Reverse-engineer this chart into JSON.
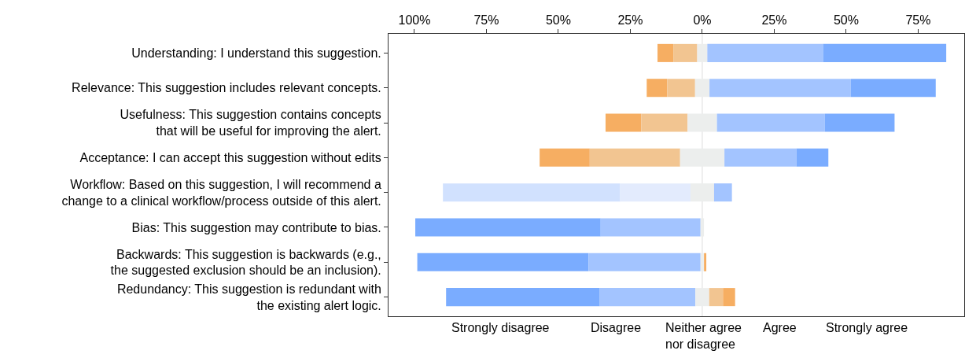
{
  "chart_data": {
    "type": "bar",
    "orientation": "horizontal",
    "categories": [
      "Understanding: I understand this suggestion.",
      "Relevance: This suggestion includes relevant concepts.",
      "Usefulness: This suggestion contains concepts\nthat will be useful for improving the alert.",
      "Acceptance: I can accept this suggestion without edits",
      "Workflow: Based on this suggestion, I will recommend a\nchange to a clinical workflow/process outside of this alert.",
      "Bias: This suggestion may contribute to bias.",
      "Backwards: This suggestion is backwards (e.g.,\nthe suggested exclusion should be an inclusion).",
      "Redundancy: This suggestion is redundant with\nthe existing alert logic."
    ],
    "series": [
      {
        "base": [
          -15.55,
          -19.3,
          -33.6,
          -56.5,
          -90.1,
          -99.7,
          -99.0,
          -89.0
        ],
        "values": [
          5.5,
          7.1,
          12.4,
          17.4,
          61.6,
          64.4,
          59.5,
          53.4
        ],
        "colors": [
          "#f6ae62",
          "#f6ae62",
          "#f6ae62",
          "#f6ae62",
          "#d1e1fe",
          "#7aacff",
          "#7aacff",
          "#7aacff"
        ]
      },
      {
        "base": [
          -10.05,
          -12.2,
          -21.2,
          -39.1,
          -28.5,
          -35.3,
          -39.5,
          -35.6
        ],
        "values": [
          8.3,
          9.7,
          16.1,
          31.4,
          24.4,
          34.7,
          38.9,
          33.2
        ],
        "colors": [
          "#f2c591",
          "#f2c591",
          "#f2c591",
          "#f2c591",
          "#e3ebfd",
          "#a3c4ff",
          "#a3c4ff",
          "#a3c4ff"
        ]
      },
      {
        "base": [
          -1.75,
          -2.5,
          -5.1,
          -7.7,
          -4.1,
          -0.6,
          -0.6,
          -2.4
        ],
        "values": [
          3.5,
          5.0,
          10.2,
          15.4,
          8.2,
          1.2,
          1.2,
          4.8
        ],
        "colors": [
          "#eceeed",
          "#eceeed",
          "#eceeed",
          "#eceeed",
          "#eceeed",
          "#eceeed",
          "#eceeed",
          "#eceeed"
        ]
      },
      {
        "base": [
          1.75,
          2.5,
          5.1,
          7.7,
          4.1,
          null,
          0.6,
          2.4
        ],
        "values": [
          40.2,
          49.1,
          37.5,
          25.0,
          6.2,
          null,
          0.8,
          4.8
        ],
        "colors": [
          "#a3c4ff",
          "#a3c4ff",
          "#a3c4ff",
          "#a3c4ff",
          "#a3c4ff",
          "#f2c591",
          "#f6ae62",
          "#f2c591"
        ]
      },
      {
        "base": [
          41.95,
          51.6,
          42.6,
          32.7,
          null,
          null,
          null,
          7.2
        ],
        "values": [
          42.8,
          29.5,
          24.2,
          11.1,
          null,
          null,
          null,
          4.2
        ],
        "colors": [
          "#7aacff",
          "#7aacff",
          "#7aacff",
          "#7aacff",
          "#7aacff",
          "#f6ae62",
          "#f6ae62",
          "#f6ae62"
        ]
      }
    ],
    "xlim": [
      -109,
      91
    ],
    "xticks": [
      {
        "value": -100,
        "label": "100%"
      },
      {
        "value": -75,
        "label": "75%"
      },
      {
        "value": -50,
        "label": "50%"
      },
      {
        "value": -25,
        "label": "25%"
      },
      {
        "value": 0,
        "label": "0%"
      },
      {
        "value": 25,
        "label": "25%"
      },
      {
        "value": 50,
        "label": "50%"
      },
      {
        "value": 75,
        "label": "75%"
      }
    ],
    "ref_lines": [
      {
        "axis": "x",
        "value": 0,
        "color": "#dddddd"
      }
    ],
    "annotations": [
      "Strongly disagree",
      "Disagree",
      "Neither agree\nnor disagree",
      "Agree",
      "Strongly agree"
    ],
    "grid": false
  }
}
